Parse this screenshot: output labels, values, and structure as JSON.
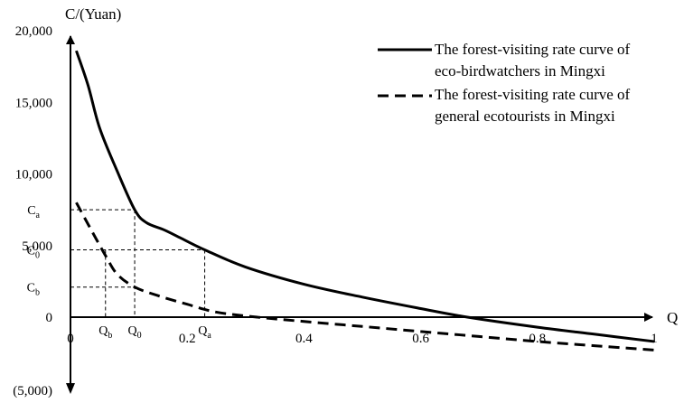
{
  "chart_data": {
    "type": "line",
    "title": "",
    "xlabel": "Q",
    "ylabel": "C/(Yuan)",
    "xlim": [
      0,
      1
    ],
    "ylim": [
      -5000,
      20000
    ],
    "x_ticks": [
      {
        "value": 0,
        "label": "0"
      },
      {
        "value": 0.2,
        "label": "0.2"
      },
      {
        "value": 0.4,
        "label": "0.4"
      },
      {
        "value": 0.6,
        "label": "0.6"
      },
      {
        "value": 0.8,
        "label": "0.8"
      },
      {
        "value": 1,
        "label": "1"
      }
    ],
    "y_ticks": [
      {
        "value": 20000,
        "label": "20,000"
      },
      {
        "value": 15000,
        "label": "15,000"
      },
      {
        "value": 10000,
        "label": "10,000"
      },
      {
        "value": 5000,
        "label": "5,000"
      },
      {
        "value": 0,
        "label": "0"
      },
      {
        "value": -5000,
        "label": "(5,000)"
      }
    ],
    "grid": false,
    "legend_position": "top-right",
    "series": [
      {
        "name": "The forest-visiting rate curve of eco-birdwatchers in Mingxi",
        "legend_lines": [
          "The forest-visiting rate curve of",
          "eco-birdwatchers in Mingxi"
        ],
        "style": "solid",
        "color": "#000000",
        "points": [
          {
            "x": 0.01,
            "y": 18600
          },
          {
            "x": 0.03,
            "y": 16200
          },
          {
            "x": 0.05,
            "y": 13200
          },
          {
            "x": 0.08,
            "y": 10200
          },
          {
            "x": 0.11,
            "y": 7500
          },
          {
            "x": 0.13,
            "y": 6600
          },
          {
            "x": 0.16,
            "y": 6100
          },
          {
            "x": 0.19,
            "y": 5500
          },
          {
            "x": 0.23,
            "y": 4700
          },
          {
            "x": 0.3,
            "y": 3500
          },
          {
            "x": 0.4,
            "y": 2300
          },
          {
            "x": 0.5,
            "y": 1400
          },
          {
            "x": 0.6,
            "y": 600
          },
          {
            "x": 0.68,
            "y": 0
          },
          {
            "x": 0.8,
            "y": -700
          },
          {
            "x": 0.9,
            "y": -1200
          },
          {
            "x": 1.0,
            "y": -1700
          }
        ]
      },
      {
        "name": "The forest-visiting rate curve of general ecotourists in Mingxi",
        "legend_lines": [
          "The forest-visiting rate curve of",
          "general ecotourists in Mingxi"
        ],
        "style": "dashed",
        "color": "#000000",
        "points": [
          {
            "x": 0.01,
            "y": 8000
          },
          {
            "x": 0.03,
            "y": 6500
          },
          {
            "x": 0.06,
            "y": 4300
          },
          {
            "x": 0.08,
            "y": 3000
          },
          {
            "x": 0.11,
            "y": 2100
          },
          {
            "x": 0.15,
            "y": 1500
          },
          {
            "x": 0.2,
            "y": 900
          },
          {
            "x": 0.25,
            "y": 350
          },
          {
            "x": 0.32,
            "y": 0
          },
          {
            "x": 0.4,
            "y": -300
          },
          {
            "x": 0.5,
            "y": -650
          },
          {
            "x": 0.6,
            "y": -1000
          },
          {
            "x": 0.7,
            "y": -1350
          },
          {
            "x": 0.8,
            "y": -1700
          },
          {
            "x": 0.9,
            "y": -2000
          },
          {
            "x": 1.0,
            "y": -2300
          }
        ]
      }
    ],
    "reference_points": [
      {
        "label": "Q",
        "sub": "b",
        "x": 0.06
      },
      {
        "label": "Q",
        "sub": "0",
        "x": 0.11
      },
      {
        "label": "Q",
        "sub": "a",
        "x": 0.23
      }
    ],
    "reference_levels": [
      {
        "label": "C",
        "sub": "a",
        "y": 7500
      },
      {
        "label": "C",
        "sub": "0",
        "y": 4700
      },
      {
        "label": "C",
        "sub": "b",
        "y": 2100
      }
    ],
    "guide_segments": [
      {
        "x1": 0,
        "y1": 7500,
        "x2": 0.11,
        "y2": 7500
      },
      {
        "x1": 0.11,
        "y1": 7500,
        "x2": 0.11,
        "y2": 0
      },
      {
        "x1": 0,
        "y1": 4700,
        "x2": 0.23,
        "y2": 4700
      },
      {
        "x1": 0.23,
        "y1": 4700,
        "x2": 0.23,
        "y2": 0
      },
      {
        "x1": 0,
        "y1": 2100,
        "x2": 0.11,
        "y2": 2100
      },
      {
        "x1": 0.06,
        "y1": 4700,
        "x2": 0.06,
        "y2": 0
      }
    ]
  }
}
